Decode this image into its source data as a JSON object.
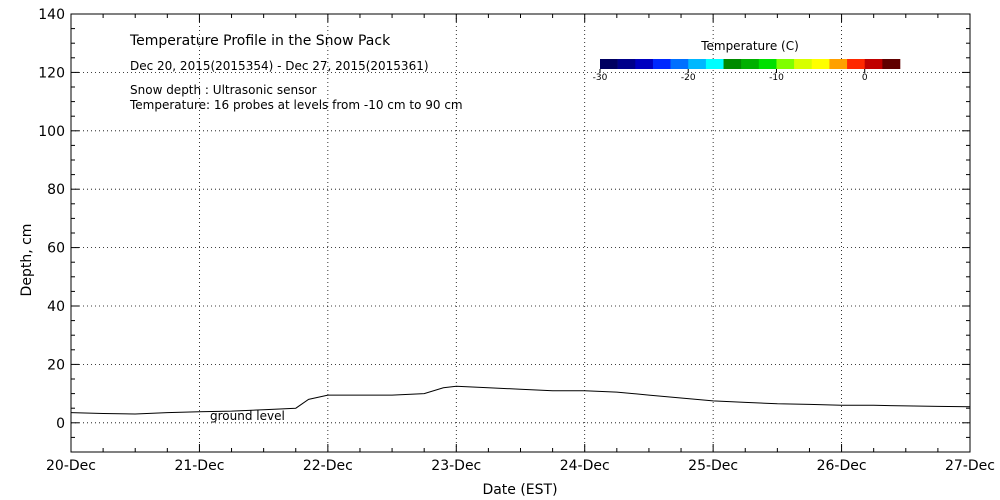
{
  "chart_data": {
    "type": "line",
    "title": "Temperature Profile in the Snow Pack",
    "subtitle": "Dec 20, 2015(2015354) - Dec 27, 2015(2015361)",
    "notes": [
      "Snow depth : Ultrasonic sensor",
      "Temperature: 16 probes at levels from -10 cm to 90 cm"
    ],
    "xlabel": "Date (EST)",
    "ylabel": "Depth, cm",
    "x_ticks": [
      "20-Dec",
      "21-Dec",
      "22-Dec",
      "23-Dec",
      "24-Dec",
      "25-Dec",
      "26-Dec",
      "27-Dec"
    ],
    "xlim": [
      0,
      7
    ],
    "ylim": [
      -10,
      140
    ],
    "y_ticks": [
      0,
      20,
      40,
      60,
      80,
      100,
      120,
      140
    ],
    "grid": true,
    "annotation": "ground level",
    "series": [
      {
        "color": "#000000",
        "x": [
          0,
          0.25,
          0.5,
          0.75,
          1.0,
          1.25,
          1.5,
          1.75,
          1.85,
          2.0,
          2.25,
          2.5,
          2.75,
          2.9,
          3.0,
          3.25,
          3.5,
          3.75,
          4.0,
          4.25,
          4.5,
          4.75,
          5.0,
          5.25,
          5.5,
          5.75,
          6.0,
          6.25,
          6.5,
          6.75,
          7.0
        ],
        "y": [
          3.5,
          3.2,
          3.0,
          3.5,
          3.8,
          4.0,
          4.5,
          5.0,
          8.0,
          9.5,
          9.5,
          9.5,
          10.0,
          12.0,
          12.5,
          12.0,
          11.5,
          11.0,
          11.0,
          10.5,
          9.5,
          8.5,
          7.5,
          7.0,
          6.5,
          6.3,
          6.0,
          6.0,
          5.8,
          5.6,
          5.5
        ]
      }
    ],
    "colorbar": {
      "label": "Temperature (C)",
      "ticks": [
        -30,
        -20,
        -10,
        0
      ],
      "range": [
        -30,
        4
      ],
      "colors": [
        "#000060",
        "#00008a",
        "#0000c0",
        "#0028ff",
        "#0070ff",
        "#00b8ff",
        "#00ffff",
        "#008a00",
        "#00b000",
        "#00e000",
        "#80ff00",
        "#d8ff00",
        "#ffff00",
        "#ffa000",
        "#ff2800",
        "#c00000",
        "#600000"
      ]
    }
  }
}
